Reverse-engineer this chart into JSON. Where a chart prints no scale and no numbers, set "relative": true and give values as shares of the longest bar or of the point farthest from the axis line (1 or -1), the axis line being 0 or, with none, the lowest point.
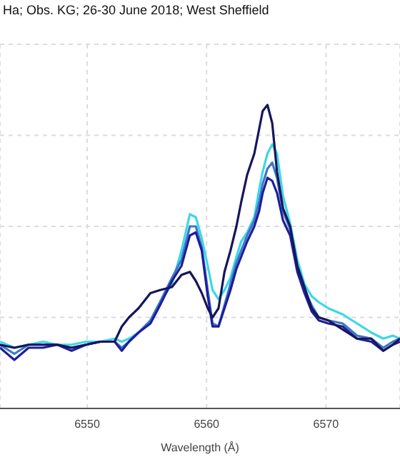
{
  "chart_data": {
    "type": "line",
    "title": "Ha; Obs. KG; 26-30 June 2018; West Sheffield",
    "xlabel": "Wavelength (Å)",
    "relative": true,
    "xlim": [
      6542.7,
      6576.2
    ],
    "xticks": [
      6550,
      6560,
      6570
    ],
    "grid": true,
    "legend": false,
    "marker": "none",
    "line_style": "solid",
    "x": [
      6542.7,
      6543.9,
      6545.1,
      6546.3,
      6547.5,
      6548.7,
      6549.9,
      6551.1,
      6552.3,
      6552.9,
      6553.5,
      6554.3,
      6555.3,
      6556.1,
      6557.1,
      6557.9,
      6558.6,
      6559.1,
      6559.6,
      6560.1,
      6560.5,
      6561.0,
      6561.5,
      6562.0,
      6562.5,
      6562.9,
      6563.4,
      6564.0,
      6564.4,
      6564.7,
      6565.1,
      6565.5,
      6565.9,
      6566.4,
      6567.0,
      6567.6,
      6568.2,
      6568.8,
      6569.4,
      6570.2,
      6571.4,
      6572.6,
      6573.8,
      6574.8,
      6575.6,
      6576.2
    ],
    "series": [
      {
        "color": "#3fd6e6",
        "values": [
          0.22,
          0.2,
          0.21,
          0.22,
          0.21,
          0.21,
          0.22,
          0.22,
          0.23,
          0.22,
          0.23,
          0.25,
          0.29,
          0.35,
          0.41,
          0.52,
          0.64,
          0.63,
          0.56,
          0.47,
          0.39,
          0.36,
          0.39,
          0.43,
          0.5,
          0.55,
          0.58,
          0.63,
          0.72,
          0.78,
          0.84,
          0.87,
          0.84,
          0.7,
          0.61,
          0.49,
          0.41,
          0.37,
          0.35,
          0.33,
          0.31,
          0.28,
          0.25,
          0.23,
          0.24,
          0.23
        ]
      },
      {
        "color": "#3a78c8",
        "values": [
          0.21,
          0.18,
          0.21,
          0.21,
          0.21,
          0.2,
          0.21,
          0.22,
          0.22,
          0.2,
          0.22,
          0.25,
          0.29,
          0.35,
          0.43,
          0.49,
          0.6,
          0.6,
          0.53,
          0.39,
          0.28,
          0.27,
          0.34,
          0.41,
          0.48,
          0.52,
          0.57,
          0.62,
          0.68,
          0.74,
          0.79,
          0.81,
          0.76,
          0.65,
          0.59,
          0.46,
          0.39,
          0.34,
          0.3,
          0.29,
          0.28,
          0.24,
          0.23,
          0.2,
          0.22,
          0.23
        ]
      },
      {
        "color": "#1e1e9a",
        "values": [
          0.2,
          0.16,
          0.2,
          0.2,
          0.21,
          0.19,
          0.21,
          0.22,
          0.22,
          0.19,
          0.22,
          0.25,
          0.28,
          0.34,
          0.42,
          0.47,
          0.57,
          0.58,
          0.52,
          0.37,
          0.27,
          0.27,
          0.33,
          0.39,
          0.46,
          0.5,
          0.55,
          0.6,
          0.65,
          0.71,
          0.76,
          0.75,
          0.71,
          0.62,
          0.57,
          0.45,
          0.38,
          0.32,
          0.29,
          0.28,
          0.27,
          0.23,
          0.22,
          0.19,
          0.21,
          0.22
        ]
      },
      {
        "color": "#16165c",
        "values": [
          0.21,
          0.2,
          0.21,
          0.21,
          0.21,
          0.2,
          0.21,
          0.22,
          0.22,
          0.27,
          0.3,
          0.33,
          0.38,
          0.39,
          0.4,
          0.44,
          0.45,
          0.42,
          0.38,
          0.33,
          0.3,
          0.33,
          0.45,
          0.52,
          0.6,
          0.68,
          0.77,
          0.84,
          0.92,
          0.98,
          1.0,
          0.94,
          0.78,
          0.66,
          0.6,
          0.47,
          0.4,
          0.33,
          0.3,
          0.29,
          0.26,
          0.23,
          0.23,
          0.19,
          0.21,
          0.23
        ]
      }
    ]
  }
}
